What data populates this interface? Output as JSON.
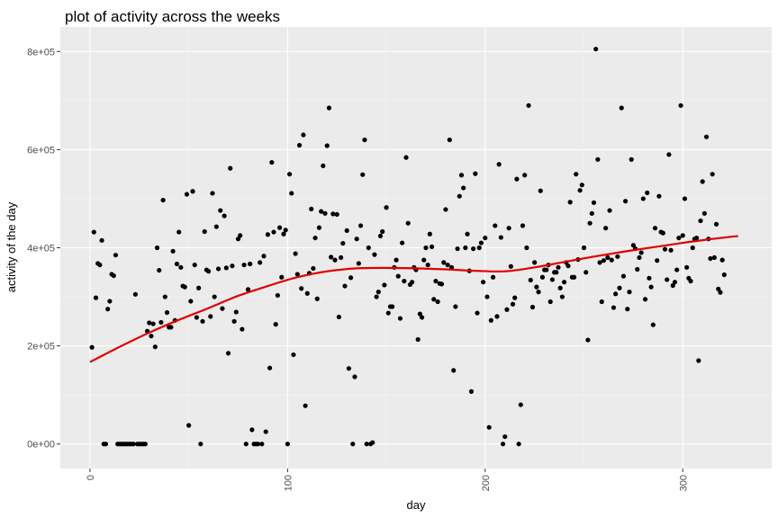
{
  "chart_data": {
    "type": "scatter",
    "title": "plot of activity across the weeks",
    "xlabel": "day",
    "ylabel": "activity of the day",
    "xlim": [
      -15,
      345
    ],
    "ylim": [
      -50000,
      850000
    ],
    "x_ticks": [
      0,
      100,
      200,
      300
    ],
    "x_tick_labels": [
      "0",
      "100",
      "200",
      "300"
    ],
    "y_ticks": [
      0,
      200000,
      400000,
      600000,
      800000
    ],
    "y_tick_labels": [
      "0e+00",
      "2e+05",
      "4e+05",
      "6e+05",
      "8e+05"
    ],
    "grid": true,
    "panel_background": "#ebebeb",
    "point_color": "#000000",
    "trend_color": "#e00000",
    "points": [
      [
        1,
        197000
      ],
      [
        2,
        432000
      ],
      [
        3,
        298000
      ],
      [
        4,
        368000
      ],
      [
        5,
        365000
      ],
      [
        6,
        415000
      ],
      [
        7,
        0
      ],
      [
        8,
        0
      ],
      [
        9,
        275000
      ],
      [
        10,
        291000
      ],
      [
        11,
        346000
      ],
      [
        12,
        343000
      ],
      [
        13,
        385000
      ],
      [
        14,
        0
      ],
      [
        15,
        0
      ],
      [
        16,
        0
      ],
      [
        17,
        0
      ],
      [
        18,
        0
      ],
      [
        19,
        0
      ],
      [
        20,
        0
      ],
      [
        21,
        0
      ],
      [
        22,
        0
      ],
      [
        23,
        305000
      ],
      [
        24,
        0
      ],
      [
        25,
        0
      ],
      [
        26,
        0
      ],
      [
        27,
        0
      ],
      [
        28,
        0
      ],
      [
        29,
        230000
      ],
      [
        30,
        247000
      ],
      [
        31,
        220000
      ],
      [
        32,
        245000
      ],
      [
        33,
        198000
      ],
      [
        34,
        400000
      ],
      [
        35,
        354000
      ],
      [
        36,
        248000
      ],
      [
        37,
        497000
      ],
      [
        38,
        300000
      ],
      [
        39,
        268000
      ],
      [
        40,
        238000
      ],
      [
        41,
        238000
      ],
      [
        42,
        393000
      ],
      [
        43,
        252000
      ],
      [
        44,
        367000
      ],
      [
        45,
        432000
      ],
      [
        46,
        360000
      ],
      [
        47,
        322000
      ],
      [
        48,
        320000
      ],
      [
        49,
        509000
      ],
      [
        50,
        38000
      ],
      [
        51,
        291000
      ],
      [
        52,
        515000
      ],
      [
        53,
        365000
      ],
      [
        54,
        258000
      ],
      [
        55,
        318000
      ],
      [
        56,
        0
      ],
      [
        57,
        250000
      ],
      [
        58,
        433000
      ],
      [
        59,
        355000
      ],
      [
        60,
        352000
      ],
      [
        61,
        260000
      ],
      [
        62,
        511000
      ],
      [
        63,
        300000
      ],
      [
        64,
        443000
      ],
      [
        65,
        357000
      ],
      [
        66,
        476000
      ],
      [
        67,
        276000
      ],
      [
        68,
        465000
      ],
      [
        69,
        359000
      ],
      [
        70,
        185000
      ],
      [
        71,
        562000
      ],
      [
        72,
        363000
      ],
      [
        73,
        250000
      ],
      [
        74,
        269000
      ],
      [
        75,
        418000
      ],
      [
        76,
        425000
      ],
      [
        77,
        234000
      ],
      [
        78,
        365000
      ],
      [
        79,
        0
      ],
      [
        80,
        315000
      ],
      [
        81,
        367000
      ],
      [
        82,
        29000
      ],
      [
        83,
        0
      ],
      [
        84,
        0
      ],
      [
        85,
        0
      ],
      [
        86,
        370000
      ],
      [
        87,
        0
      ],
      [
        88,
        383000
      ],
      [
        89,
        25000
      ],
      [
        90,
        427000
      ],
      [
        91,
        155000
      ],
      [
        92,
        574000
      ],
      [
        93,
        432000
      ],
      [
        94,
        244000
      ],
      [
        95,
        303000
      ],
      [
        96,
        441000
      ],
      [
        97,
        340000
      ],
      [
        98,
        428000
      ],
      [
        99,
        436000
      ],
      [
        100,
        0
      ],
      [
        101,
        550000
      ],
      [
        102,
        511000
      ],
      [
        103,
        182000
      ],
      [
        104,
        388000
      ],
      [
        105,
        346000
      ],
      [
        106,
        609000
      ],
      [
        107,
        317000
      ],
      [
        108,
        630000
      ],
      [
        109,
        78000
      ],
      [
        110,
        307000
      ],
      [
        111,
        348000
      ],
      [
        112,
        479000
      ],
      [
        113,
        358000
      ],
      [
        114,
        420000
      ],
      [
        115,
        296000
      ],
      [
        116,
        441000
      ],
      [
        117,
        474000
      ],
      [
        118,
        567000
      ],
      [
        119,
        470000
      ],
      [
        120,
        608000
      ],
      [
        121,
        685000
      ],
      [
        122,
        381000
      ],
      [
        123,
        469000
      ],
      [
        124,
        375000
      ],
      [
        125,
        468000
      ],
      [
        126,
        259000
      ],
      [
        127,
        380000
      ],
      [
        128,
        409000
      ],
      [
        129,
        322000
      ],
      [
        130,
        435000
      ],
      [
        131,
        154000
      ],
      [
        132,
        339000
      ],
      [
        133,
        0
      ],
      [
        134,
        137000
      ],
      [
        135,
        418000
      ],
      [
        136,
        368000
      ],
      [
        137,
        445000
      ],
      [
        138,
        549000
      ],
      [
        139,
        620000
      ],
      [
        140,
        0
      ],
      [
        141,
        400000
      ],
      [
        142,
        0
      ],
      [
        143,
        3000
      ],
      [
        144,
        386000
      ],
      [
        145,
        300000
      ],
      [
        146,
        310000
      ],
      [
        147,
        424000
      ],
      [
        148,
        433000
      ],
      [
        149,
        324000
      ],
      [
        150,
        482000
      ],
      [
        151,
        267000
      ],
      [
        152,
        280000
      ],
      [
        153,
        280000
      ],
      [
        154,
        360000
      ],
      [
        155,
        375000
      ],
      [
        156,
        342000
      ],
      [
        157,
        256000
      ],
      [
        158,
        410000
      ],
      [
        159,
        332000
      ],
      [
        160,
        584000
      ],
      [
        161,
        450000
      ],
      [
        162,
        325000
      ],
      [
        163,
        330000
      ],
      [
        164,
        360000
      ],
      [
        165,
        355000
      ],
      [
        166,
        213000
      ],
      [
        167,
        265000
      ],
      [
        168,
        258000
      ],
      [
        169,
        375000
      ],
      [
        170,
        400000
      ],
      [
        171,
        365000
      ],
      [
        172,
        428000
      ],
      [
        173,
        402000
      ],
      [
        174,
        295000
      ],
      [
        175,
        332000
      ],
      [
        176,
        290000
      ],
      [
        177,
        327000
      ],
      [
        178,
        326000
      ],
      [
        179,
        370000
      ],
      [
        180,
        478000
      ],
      [
        181,
        365000
      ],
      [
        182,
        620000
      ],
      [
        183,
        360000
      ],
      [
        184,
        150000
      ],
      [
        185,
        280000
      ],
      [
        186,
        398000
      ],
      [
        187,
        505000
      ],
      [
        188,
        548000
      ],
      [
        189,
        522000
      ],
      [
        190,
        400000
      ],
      [
        191,
        428000
      ],
      [
        192,
        353000
      ],
      [
        193,
        107000
      ],
      [
        194,
        398000
      ],
      [
        195,
        551000
      ],
      [
        196,
        267000
      ],
      [
        197,
        400000
      ],
      [
        198,
        410000
      ],
      [
        199,
        330000
      ],
      [
        200,
        420000
      ],
      [
        201,
        300000
      ],
      [
        202,
        34000
      ],
      [
        203,
        252000
      ],
      [
        204,
        340000
      ],
      [
        205,
        445000
      ],
      [
        206,
        260000
      ],
      [
        207,
        570000
      ],
      [
        208,
        421000
      ],
      [
        209,
        0
      ],
      [
        210,
        15000
      ],
      [
        211,
        274000
      ],
      [
        212,
        440000
      ],
      [
        213,
        362000
      ],
      [
        214,
        285000
      ],
      [
        215,
        298000
      ],
      [
        216,
        540000
      ],
      [
        217,
        0
      ],
      [
        218,
        80000
      ],
      [
        219,
        445000
      ],
      [
        220,
        548000
      ],
      [
        221,
        400000
      ],
      [
        222,
        690000
      ],
      [
        223,
        334000
      ],
      [
        224,
        279000
      ],
      [
        225,
        370000
      ],
      [
        226,
        320000
      ],
      [
        227,
        310000
      ],
      [
        228,
        516000
      ],
      [
        229,
        340000
      ],
      [
        230,
        355000
      ],
      [
        231,
        355000
      ],
      [
        232,
        365000
      ],
      [
        233,
        290000
      ],
      [
        234,
        335000
      ],
      [
        235,
        350000
      ],
      [
        236,
        350000
      ],
      [
        237,
        360000
      ],
      [
        238,
        318000
      ],
      [
        239,
        300000
      ],
      [
        240,
        330000
      ],
      [
        241,
        370000
      ],
      [
        242,
        363000
      ],
      [
        243,
        493000
      ],
      [
        244,
        340000
      ],
      [
        245,
        340000
      ],
      [
        246,
        550000
      ],
      [
        247,
        376000
      ],
      [
        248,
        517000
      ],
      [
        249,
        528000
      ],
      [
        250,
        400000
      ],
      [
        251,
        350000
      ],
      [
        252,
        212000
      ],
      [
        253,
        450000
      ],
      [
        254,
        470000
      ],
      [
        255,
        492000
      ],
      [
        256,
        805000
      ],
      [
        257,
        580000
      ],
      [
        258,
        370000
      ],
      [
        259,
        290000
      ],
      [
        260,
        374000
      ],
      [
        261,
        440000
      ],
      [
        262,
        380000
      ],
      [
        263,
        476000
      ],
      [
        264,
        375000
      ],
      [
        265,
        278000
      ],
      [
        266,
        306000
      ],
      [
        267,
        382000
      ],
      [
        268,
        318000
      ],
      [
        269,
        685000
      ],
      [
        270,
        342000
      ],
      [
        271,
        495000
      ],
      [
        272,
        275000
      ],
      [
        273,
        310000
      ],
      [
        274,
        580000
      ],
      [
        275,
        405000
      ],
      [
        276,
        398000
      ],
      [
        277,
        356000
      ],
      [
        278,
        380000
      ],
      [
        279,
        390000
      ],
      [
        280,
        500000
      ],
      [
        281,
        295000
      ],
      [
        282,
        512000
      ],
      [
        283,
        338000
      ],
      [
        284,
        320000
      ],
      [
        285,
        243000
      ],
      [
        286,
        440000
      ],
      [
        287,
        374000
      ],
      [
        288,
        505000
      ],
      [
        289,
        432000
      ],
      [
        290,
        430000
      ],
      [
        291,
        397000
      ],
      [
        292,
        335000
      ],
      [
        293,
        590000
      ],
      [
        294,
        395000
      ],
      [
        295,
        323000
      ],
      [
        296,
        330000
      ],
      [
        297,
        355000
      ],
      [
        298,
        420000
      ],
      [
        299,
        690000
      ],
      [
        300,
        425000
      ],
      [
        301,
        500000
      ],
      [
        302,
        360000
      ],
      [
        303,
        338000
      ],
      [
        304,
        332000
      ],
      [
        305,
        400000
      ],
      [
        306,
        418000
      ],
      [
        307,
        420000
      ],
      [
        308,
        170000
      ],
      [
        309,
        455000
      ],
      [
        310,
        535000
      ],
      [
        311,
        470000
      ],
      [
        312,
        626000
      ],
      [
        313,
        418000
      ],
      [
        314,
        378000
      ],
      [
        315,
        550000
      ],
      [
        316,
        380000
      ],
      [
        317,
        448000
      ],
      [
        318,
        316000
      ],
      [
        319,
        309000
      ],
      [
        320,
        375000
      ],
      [
        321,
        345000
      ]
    ],
    "trend": {
      "type": "smooth",
      "x": [
        0,
        15,
        30,
        45,
        60,
        75,
        90,
        105,
        120,
        135,
        150,
        165,
        180,
        195,
        210,
        225,
        240,
        255,
        270,
        285,
        300,
        315,
        328
      ],
      "y": [
        167000,
        198000,
        227000,
        253000,
        277000,
        302000,
        322000,
        340000,
        352000,
        358000,
        359000,
        358000,
        356000,
        353000,
        352000,
        360000,
        371000,
        382000,
        392000,
        401000,
        410000,
        418000,
        424000
      ]
    }
  }
}
